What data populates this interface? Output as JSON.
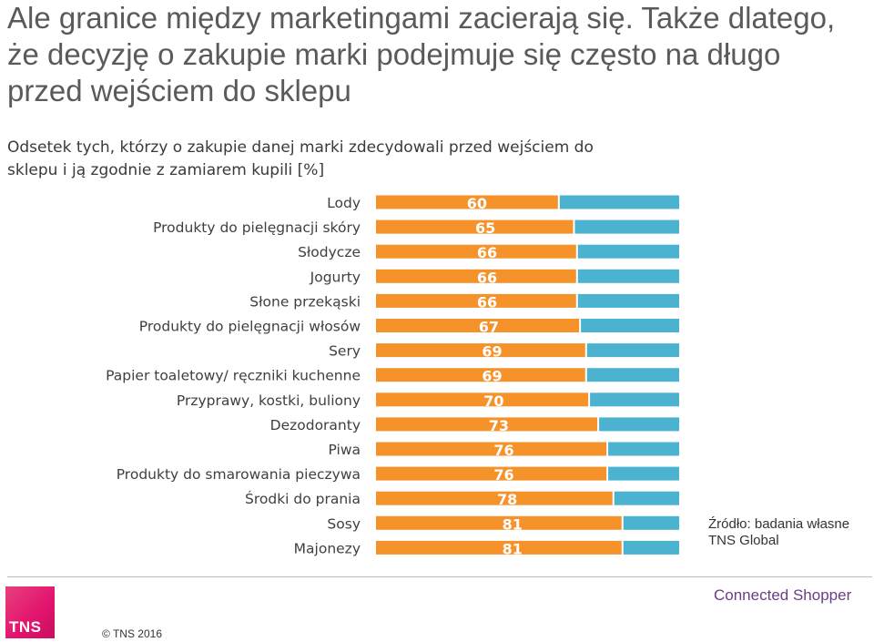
{
  "headline": "Ale granice między marketingami zacierają się. Także dlatego, że decyzję o zakupie marki podejmuje się często na długo przed wejściem do sklepu",
  "subtitle": "Odsetek tych, którzy o zakupie danej marki zdecydowali przed wejściem do sklepu i ją zgodnie z zamiarem kupili [%]",
  "source": "Źródło: badania własne TNS Global",
  "footer": {
    "logo_text": "TNS",
    "copyright": "© TNS 2016",
    "brand": "Connected Shopper"
  },
  "colors": {
    "bar_primary": "#F5922A",
    "bar_remainder": "#4BB3CF",
    "value_label": "#FFFFFF",
    "category_label": "#3f3f3f"
  },
  "chart_data": {
    "type": "bar",
    "orientation": "horizontal",
    "stacked_to": 100,
    "xlim": [
      0,
      100
    ],
    "categories": [
      "Lody",
      "Produkty do pielęgnacji skóry",
      "Słodycze",
      "Jogurty",
      "Słone przekąski",
      "Produkty do pielęgnacji włosów",
      "Sery",
      "Papier toaletowy/ ręczniki kuchenne",
      "Przyprawy, kostki, buliony",
      "Dezodoranty",
      "Piwa",
      "Produkty do smarowania pieczywa",
      "Środki do prania",
      "Sosy",
      "Majonezy"
    ],
    "values": [
      60,
      65,
      66,
      66,
      66,
      67,
      69,
      69,
      70,
      73,
      76,
      76,
      78,
      81,
      81
    ],
    "data_labels": [
      "60",
      "65",
      "66",
      "66",
      "66",
      "67",
      "69",
      "69",
      "70",
      "73",
      "76",
      "76",
      "78",
      "81",
      "81"
    ],
    "grid": false,
    "legend": "none"
  }
}
